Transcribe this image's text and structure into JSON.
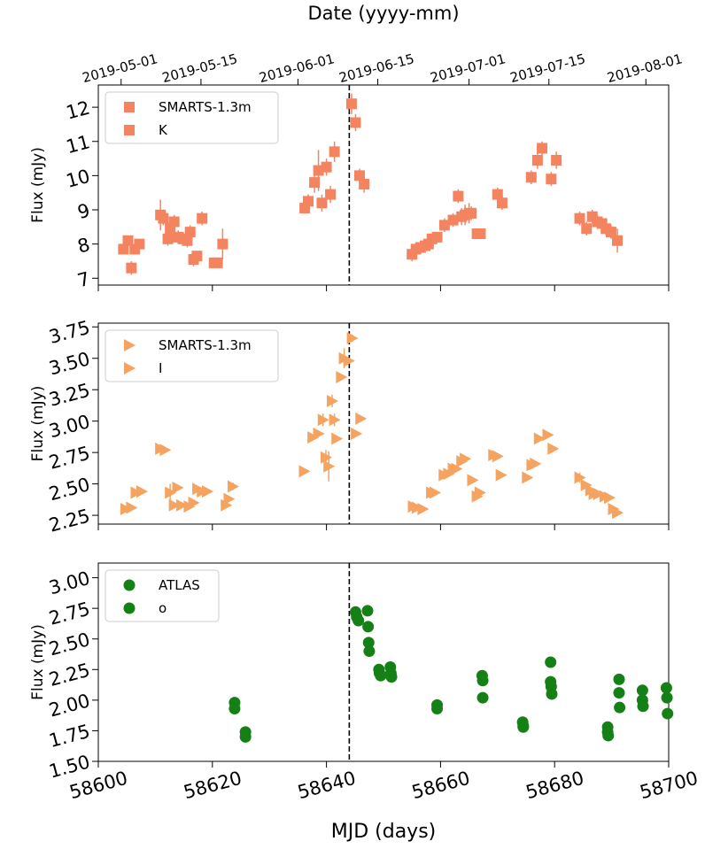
{
  "chart_data": {
    "type": "scatter",
    "top_axis": {
      "label": "Date (yyyy-mm)",
      "ticks": [
        {
          "mjd": 58604,
          "label": "2019-05-01"
        },
        {
          "mjd": 58618,
          "label": "2019-05-15"
        },
        {
          "mjd": 58635,
          "label": "2019-06-01"
        },
        {
          "mjd": 58649,
          "label": "2019-06-15"
        },
        {
          "mjd": 58665,
          "label": "2019-07-01"
        },
        {
          "mjd": 58679,
          "label": "2019-07-15"
        },
        {
          "mjd": 58696,
          "label": "2019-08-01"
        }
      ]
    },
    "x_axis": {
      "label": "MJD (days)",
      "range": [
        58600,
        58700
      ],
      "ticks": [
        58600,
        58620,
        58640,
        58660,
        58680,
        58700
      ]
    },
    "vline_mjd": 58644,
    "panels": [
      {
        "ylabel": "Flux (mJy)",
        "yrange": [
          6.8,
          12.65
        ],
        "yticks": [
          7,
          8,
          9,
          10,
          11,
          12
        ],
        "ytick_labels": [
          "7",
          "8",
          "9",
          "10",
          "11",
          "12"
        ],
        "legend": [
          "SMARTS-1.3m",
          "K"
        ],
        "marker": "square",
        "color": "#f4845f",
        "points": [
          [
            58604.4,
            7.85,
            0.15
          ],
          [
            58605.2,
            8.1,
            0.15
          ],
          [
            58605.8,
            7.3,
            0.2
          ],
          [
            58606.4,
            7.85,
            0.15
          ],
          [
            58607.2,
            8.0,
            0.1
          ],
          [
            58610.9,
            8.85,
            0.45
          ],
          [
            58611.4,
            8.75,
            0.2
          ],
          [
            58612.2,
            8.15,
            0.2
          ],
          [
            58612.6,
            8.45,
            0.2
          ],
          [
            58613.3,
            8.65,
            0.2
          ],
          [
            58614.0,
            8.2,
            0.2
          ],
          [
            58614.9,
            8.15,
            0.2
          ],
          [
            58615.6,
            8.1,
            0.2
          ],
          [
            58616.1,
            8.35,
            0.2
          ],
          [
            58616.7,
            7.55,
            0.2
          ],
          [
            58617.3,
            7.65,
            0.15
          ],
          [
            58618.2,
            8.75,
            0.2
          ],
          [
            58620.3,
            7.45,
            0.15
          ],
          [
            58620.9,
            7.45,
            0.15
          ],
          [
            58621.8,
            8.0,
            0.45
          ],
          [
            58636.2,
            9.05,
            0.15
          ],
          [
            58636.8,
            9.25,
            0.2
          ],
          [
            58637.9,
            9.8,
            0.3
          ],
          [
            58638.6,
            10.15,
            0.6
          ],
          [
            58639.2,
            9.2,
            0.25
          ],
          [
            58640.0,
            10.25,
            0.25
          ],
          [
            58640.7,
            9.45,
            0.25
          ],
          [
            58641.4,
            10.7,
            0.3
          ],
          [
            58644.4,
            12.1,
            0.3
          ],
          [
            58645.1,
            11.55,
            0.25
          ],
          [
            58645.8,
            10.0,
            0.2
          ],
          [
            58646.6,
            9.75,
            0.25
          ],
          [
            58655.0,
            7.7,
            0.2
          ],
          [
            58655.7,
            7.85,
            0.2
          ],
          [
            58656.5,
            7.9,
            0.15
          ],
          [
            58657.3,
            7.95,
            0.15
          ],
          [
            58657.9,
            8.0,
            0.15
          ],
          [
            58658.5,
            8.15,
            0.15
          ],
          [
            58659.4,
            8.2,
            0.15
          ],
          [
            58660.7,
            8.55,
            0.2
          ],
          [
            58662.2,
            8.7,
            0.2
          ],
          [
            58663.1,
            9.4,
            0.2
          ],
          [
            58663.7,
            8.8,
            0.25
          ],
          [
            58664.3,
            8.85,
            0.3
          ],
          [
            58665.0,
            8.9,
            0.3
          ],
          [
            58665.4,
            8.9,
            0.2
          ],
          [
            58666.4,
            8.3,
            0.15
          ],
          [
            58667.0,
            8.3,
            0.15
          ],
          [
            58670.0,
            9.45,
            0.2
          ],
          [
            58670.8,
            9.2,
            0.2
          ],
          [
            58675.9,
            9.95,
            0.2
          ],
          [
            58677.0,
            10.45,
            0.25
          ],
          [
            58677.8,
            10.8,
            0.2
          ],
          [
            58679.4,
            9.9,
            0.2
          ],
          [
            58680.3,
            10.45,
            0.25
          ],
          [
            58684.4,
            8.75,
            0.2
          ],
          [
            58685.6,
            8.45,
            0.2
          ],
          [
            58686.6,
            8.8,
            0.2
          ],
          [
            58687.5,
            8.65,
            0.2
          ],
          [
            58688.3,
            8.6,
            0.2
          ],
          [
            58689.0,
            8.45,
            0.2
          ],
          [
            58689.9,
            8.35,
            0.2
          ],
          [
            58691.0,
            8.1,
            0.35
          ]
        ]
      },
      {
        "ylabel": "Flux (mJy)",
        "yrange": [
          2.18,
          3.78
        ],
        "yticks": [
          2.25,
          2.5,
          2.75,
          3.0,
          3.25,
          3.5,
          3.75
        ],
        "ytick_labels": [
          "2.25",
          "2.50",
          "2.75",
          "3.00",
          "3.25",
          "3.50",
          "3.75"
        ],
        "legend": [
          "SMARTS-1.3m",
          "I"
        ],
        "marker": "triangle-right",
        "color": "#f4a460",
        "points": [
          [
            58604.8,
            2.3,
            0.02
          ],
          [
            58605.8,
            2.31,
            0.02
          ],
          [
            58606.6,
            2.43,
            0.02
          ],
          [
            58607.6,
            2.44,
            0.02
          ],
          [
            58610.9,
            2.78,
            0.02
          ],
          [
            58611.7,
            2.77,
            0.02
          ],
          [
            58612.6,
            2.43,
            0.07
          ],
          [
            58613.3,
            2.33,
            0.02
          ],
          [
            58613.9,
            2.47,
            0.02
          ],
          [
            58614.6,
            2.33,
            0.02
          ],
          [
            58615.9,
            2.32,
            0.02
          ],
          [
            58616.7,
            2.35,
            0.02
          ],
          [
            58617.4,
            2.46,
            0.02
          ],
          [
            58618.2,
            2.44,
            0.02
          ],
          [
            58619.1,
            2.44,
            0.02
          ],
          [
            58622.4,
            2.33,
            0.02
          ],
          [
            58622.9,
            2.38,
            0.02
          ],
          [
            58623.6,
            2.48,
            0.03
          ],
          [
            58636.1,
            2.6,
            0.02
          ],
          [
            58637.6,
            2.87,
            0.02
          ],
          [
            58638.6,
            2.9,
            0.02
          ],
          [
            58639.4,
            3.01,
            0.05
          ],
          [
            58639.9,
            2.71,
            0.06
          ],
          [
            58640.4,
            2.64,
            0.12
          ],
          [
            58641.0,
            3.16,
            0.05
          ],
          [
            58641.4,
            3.01,
            0.05
          ],
          [
            58641.8,
            2.86,
            0.02
          ],
          [
            58642.6,
            3.35,
            0.02
          ],
          [
            58643.1,
            3.5,
            0.08
          ],
          [
            58643.9,
            3.48,
            0.02
          ],
          [
            58644.5,
            3.66,
            0.03
          ],
          [
            58645.2,
            2.9,
            0.02
          ],
          [
            58646.0,
            3.02,
            0.02
          ],
          [
            58655.2,
            2.32,
            0.02
          ],
          [
            58655.9,
            2.31,
            0.02
          ],
          [
            58656.9,
            2.3,
            0.02
          ],
          [
            58658.4,
            2.43,
            0.02
          ],
          [
            58659.0,
            2.43,
            0.02
          ],
          [
            58660.6,
            2.57,
            0.02
          ],
          [
            58661.4,
            2.58,
            0.02
          ],
          [
            58662.2,
            2.62,
            0.02
          ],
          [
            58662.8,
            2.62,
            0.02
          ],
          [
            58663.7,
            2.68,
            0.02
          ],
          [
            58664.3,
            2.7,
            0.02
          ],
          [
            58665.6,
            2.53,
            0.02
          ],
          [
            58666.4,
            2.4,
            0.02
          ],
          [
            58666.9,
            2.43,
            0.02
          ],
          [
            58669.3,
            2.73,
            0.02
          ],
          [
            58670.0,
            2.72,
            0.02
          ],
          [
            58670.6,
            2.57,
            0.02
          ],
          [
            58675.2,
            2.55,
            0.02
          ],
          [
            58676.0,
            2.65,
            0.02
          ],
          [
            58676.6,
            2.66,
            0.02
          ],
          [
            58677.3,
            2.86,
            0.02
          ],
          [
            58678.8,
            2.89,
            0.02
          ],
          [
            58679.7,
            2.78,
            0.02
          ],
          [
            58684.4,
            2.55,
            0.04
          ],
          [
            58685.5,
            2.49,
            0.02
          ],
          [
            58686.3,
            2.45,
            0.02
          ],
          [
            58686.9,
            2.42,
            0.02
          ],
          [
            58687.7,
            2.42,
            0.02
          ],
          [
            58688.8,
            2.4,
            0.02
          ],
          [
            58689.6,
            2.39,
            0.02
          ],
          [
            58690.3,
            2.3,
            0.02
          ],
          [
            58691.0,
            2.27,
            0.02
          ]
        ]
      },
      {
        "ylabel": "Flux (mJy)",
        "yrange": [
          1.5,
          3.12
        ],
        "yticks": [
          1.5,
          1.75,
          2.0,
          2.25,
          2.5,
          2.75,
          3.0
        ],
        "ytick_labels": [
          "1.50",
          "1.75",
          "2.00",
          "2.25",
          "2.50",
          "2.75",
          "3.00"
        ],
        "legend": [
          "ATLAS",
          "o"
        ],
        "marker": "circle",
        "color": "#158015",
        "points": [
          [
            58623.9,
            1.98,
            0.04
          ],
          [
            58623.9,
            1.93,
            0.03
          ],
          [
            58625.8,
            1.74,
            0.03
          ],
          [
            58625.8,
            1.7,
            0.03
          ],
          [
            58645.1,
            2.72,
            0.03
          ],
          [
            58645.3,
            2.68,
            0.03
          ],
          [
            58645.6,
            2.65,
            0.03
          ],
          [
            58647.2,
            2.73,
            0.03
          ],
          [
            58647.3,
            2.6,
            0.03
          ],
          [
            58647.4,
            2.47,
            0.03
          ],
          [
            58647.5,
            2.4,
            0.03
          ],
          [
            58649.2,
            2.25,
            0.03
          ],
          [
            58649.3,
            2.22,
            0.03
          ],
          [
            58649.5,
            2.2,
            0.03
          ],
          [
            58651.2,
            2.27,
            0.03
          ],
          [
            58651.3,
            2.22,
            0.03
          ],
          [
            58651.4,
            2.19,
            0.03
          ],
          [
            58659.4,
            1.96,
            0.03
          ],
          [
            58659.4,
            1.93,
            0.03
          ],
          [
            58667.3,
            2.2,
            0.03
          ],
          [
            58667.4,
            2.16,
            0.03
          ],
          [
            58667.4,
            2.02,
            0.03
          ],
          [
            58674.4,
            1.82,
            0.03
          ],
          [
            58674.5,
            1.79,
            0.03
          ],
          [
            58674.5,
            1.78,
            0.03
          ],
          [
            58679.3,
            2.31,
            0.03
          ],
          [
            58679.3,
            2.15,
            0.03
          ],
          [
            58679.4,
            2.11,
            0.03
          ],
          [
            58679.5,
            2.05,
            0.03
          ],
          [
            58689.3,
            1.78,
            0.03
          ],
          [
            58689.3,
            1.74,
            0.03
          ],
          [
            58689.4,
            1.71,
            0.03
          ],
          [
            58691.3,
            2.17,
            0.03
          ],
          [
            58691.3,
            2.06,
            0.03
          ],
          [
            58691.4,
            1.94,
            0.03
          ],
          [
            58695.4,
            2.08,
            0.03
          ],
          [
            58695.4,
            2.0,
            0.03
          ],
          [
            58695.5,
            1.95,
            0.03
          ],
          [
            58699.6,
            2.1,
            0.03
          ],
          [
            58699.7,
            2.02,
            0.03
          ],
          [
            58699.8,
            1.89,
            0.03
          ]
        ]
      }
    ]
  }
}
